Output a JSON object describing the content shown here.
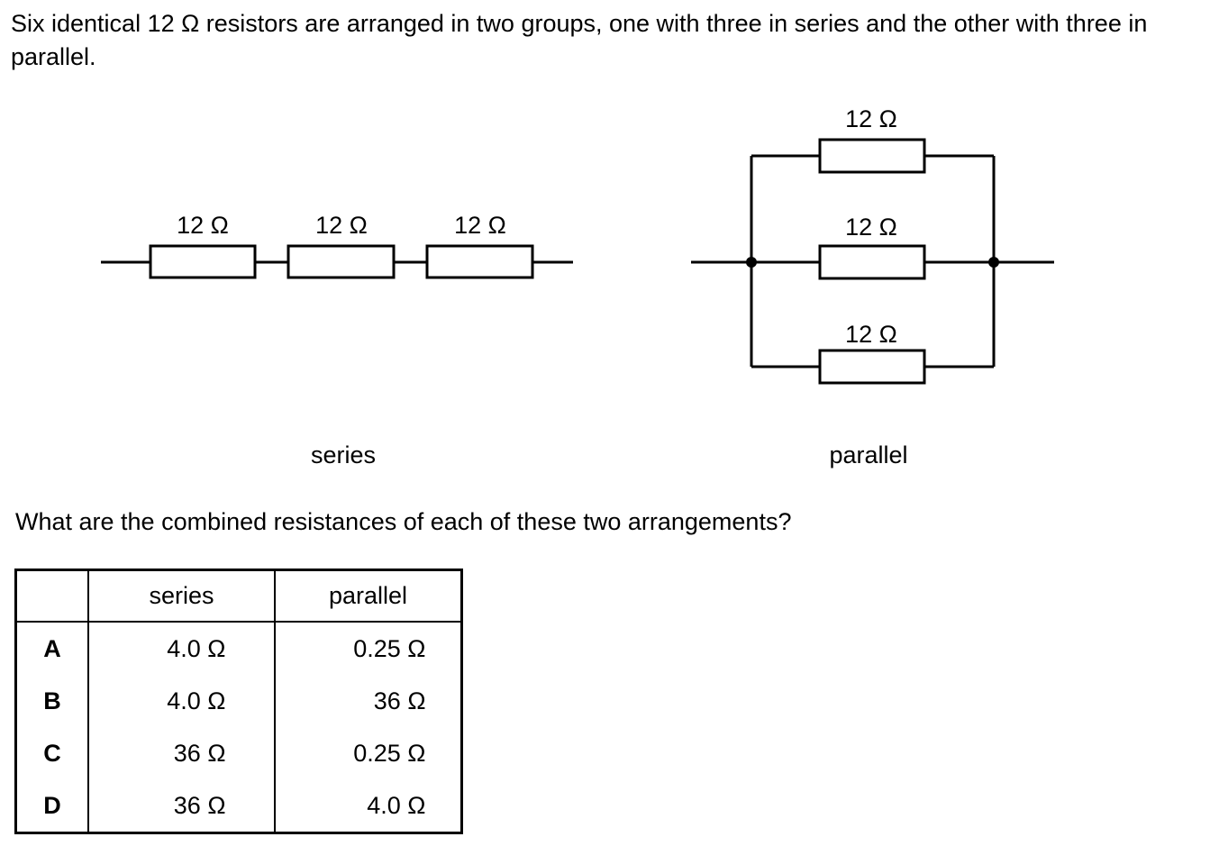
{
  "intro_text": "Six identical 12 Ω resistors are arranged in two groups, one with three in series and the other with three in parallel.",
  "question_text": "What are the combined resistances of each of these two arrangements?",
  "diagram": {
    "series": {
      "caption": "series",
      "resistor_labels": [
        "12 Ω",
        "12 Ω",
        "12 Ω"
      ]
    },
    "parallel": {
      "caption": "parallel",
      "resistor_labels": [
        "12 Ω",
        "12 Ω",
        "12 Ω"
      ]
    }
  },
  "table": {
    "headers": [
      "",
      "series",
      "parallel"
    ],
    "rows": [
      {
        "option": "A",
        "series": "4.0 Ω",
        "parallel": "0.25 Ω"
      },
      {
        "option": "B",
        "series": "4.0 Ω",
        "parallel": "36 Ω"
      },
      {
        "option": "C",
        "series": "36 Ω",
        "parallel": "0.25 Ω"
      },
      {
        "option": "D",
        "series": "36 Ω",
        "parallel": "4.0 Ω"
      }
    ]
  }
}
